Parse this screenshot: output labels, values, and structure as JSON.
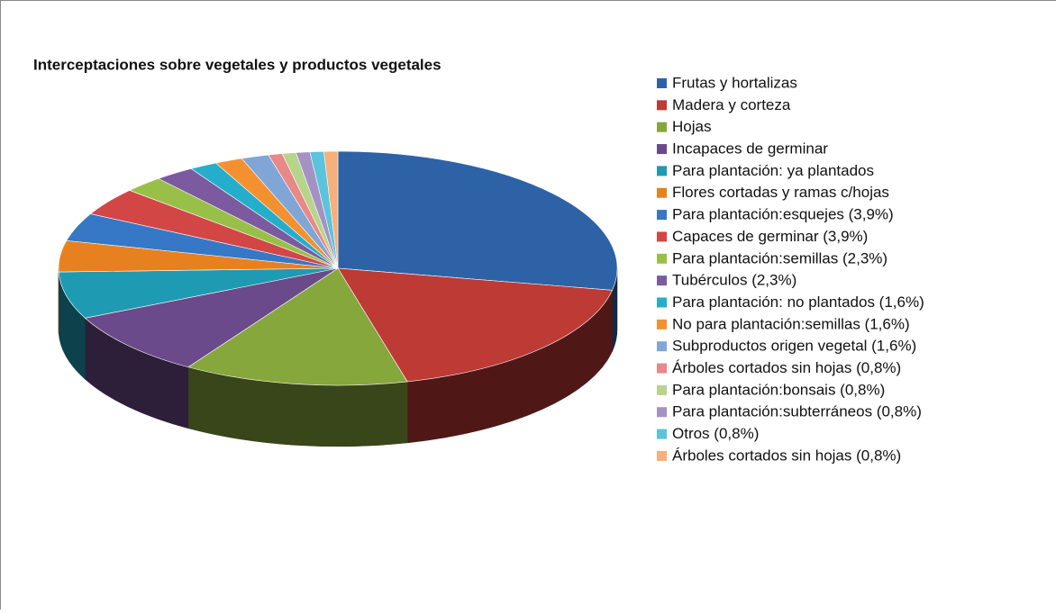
{
  "chart_data": {
    "type": "pie3d",
    "title": "Interceptaciones sobre vegetales y productos vegetales",
    "categories": [
      "Frutas y hortalizas",
      "Madera y corteza",
      "Hojas",
      "Incapaces de germinar",
      "Para plantación: ya plantados",
      "Flores cortadas y ramas c/hojas",
      "Para plantación:esquejes (3,9%)",
      "Capaces de germinar (3,9%)",
      "Para plantación:semillas (2,3%)",
      "Tubérculos (2,3%)",
      "Para plantación: no plantados (1,6%)",
      "No para plantación:semillas (1,6%)",
      "Subproductos origen vegetal (1,6%)",
      "Árboles cortados sin hojas (0,8%)",
      "Para plantación:bonsais (0,8%)",
      "Para plantación:subterráneos (0,8%)",
      "Otros (0,8%)",
      "Árboles cortados sin hojas (0,8%)"
    ],
    "values": [
      28,
      18,
      13,
      9,
      6.5,
      4.3,
      3.9,
      3.9,
      2.3,
      2.3,
      1.6,
      1.6,
      1.6,
      0.8,
      0.8,
      0.8,
      0.8,
      0.8
    ],
    "colors": [
      "#2d62a6",
      "#bd3a35",
      "#86a73b",
      "#6a4a8a",
      "#1f9ab3",
      "#e7811f",
      "#3677c6",
      "#d24646",
      "#98c048",
      "#7b5a9f",
      "#25aecb",
      "#f39131",
      "#80a6d6",
      "#e88888",
      "#b7d48b",
      "#a592c4",
      "#5bc3dc",
      "#f5b07b"
    ],
    "legend": "right"
  }
}
